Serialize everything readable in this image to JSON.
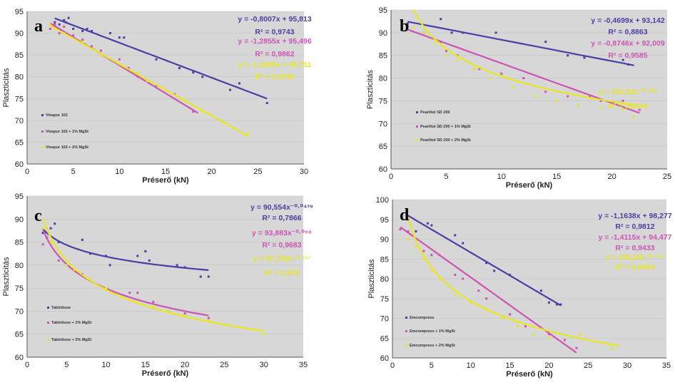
{
  "figure": {
    "colors": {
      "series1": "#4a3fa3",
      "series2": "#cc55b4",
      "series3": "#e8e820"
    }
  },
  "chart_data": [
    {
      "type": "scatter",
      "panel": "a",
      "xlabel": "Préserő (kN)",
      "ylabel": "Plaszticitás",
      "xlim": [
        0,
        30
      ],
      "ylim": [
        60,
        95
      ],
      "xticks": [
        0,
        5,
        10,
        15,
        20,
        25,
        30
      ],
      "yticks": [
        60,
        65,
        70,
        75,
        80,
        85,
        90,
        95
      ],
      "series": [
        {
          "name": "Vivapur 102",
          "fit": "linear",
          "a": -0.8007,
          "b": 95.813,
          "equation": "y = -0,8007x + 95,813",
          "r2": "R² = 0,9743",
          "fit_range": [
            3,
            26
          ],
          "points": [
            [
              3,
              92.5
            ],
            [
              3.5,
              92
            ],
            [
              4,
              93
            ],
            [
              4.2,
              92.5
            ],
            [
              4.5,
              93.5
            ],
            [
              5,
              91
            ],
            [
              6,
              90.5
            ],
            [
              6.5,
              91
            ],
            [
              7,
              90.5
            ],
            [
              9,
              90
            ],
            [
              10,
              89
            ],
            [
              10.5,
              89
            ],
            [
              14,
              84
            ],
            [
              16.5,
              82
            ],
            [
              18,
              81
            ],
            [
              19,
              80
            ],
            [
              22,
              77
            ],
            [
              23,
              78.5
            ],
            [
              26,
              74
            ]
          ]
        },
        {
          "name": "Vivapur 102 + 1% MgSt",
          "fit": "linear",
          "a": -1.2855,
          "b": 95.496,
          "equation": "y = -1,2855x + 95,496",
          "r2": "R² = 0,9862",
          "fit_range": [
            2.5,
            18.5
          ],
          "points": [
            [
              2.5,
              91
            ],
            [
              3,
              92
            ],
            [
              3.5,
              90
            ],
            [
              4,
              91.5
            ],
            [
              5,
              89.5
            ],
            [
              6,
              88.5
            ],
            [
              7,
              87
            ],
            [
              8,
              86
            ],
            [
              9,
              84
            ],
            [
              10,
              84
            ],
            [
              11,
              82
            ],
            [
              12,
              80
            ],
            [
              14,
              78
            ],
            [
              16,
              76
            ],
            [
              18,
              72
            ]
          ]
        },
        {
          "name": "Vivapur 102 + 2% MgSt",
          "fit": "linear",
          "a": -1.1808,
          "b": 94.711,
          "equation": "y = -1,1808x + 94,711",
          "r2": "R² = 0,9789",
          "fit_range": [
            2.5,
            24
          ],
          "points": [
            [
              2.5,
              92
            ],
            [
              3,
              91
            ],
            [
              4,
              90
            ],
            [
              6,
              88
            ],
            [
              7.5,
              86
            ],
            [
              8,
              85
            ],
            [
              10,
              83
            ],
            [
              12,
              81
            ],
            [
              13,
              79
            ],
            [
              15,
              77
            ],
            [
              17,
              75
            ],
            [
              19,
              72
            ],
            [
              21,
              70
            ],
            [
              24,
              67
            ]
          ]
        }
      ]
    },
    {
      "type": "scatter",
      "panel": "b",
      "xlabel": "Préserő (kN)",
      "ylabel": "Plaszticitás",
      "xlim": [
        0,
        25
      ],
      "ylim": [
        60,
        95
      ],
      "xticks": [
        0,
        5,
        10,
        15,
        20,
        25
      ],
      "yticks": [
        60,
        65,
        70,
        75,
        80,
        85,
        90,
        95
      ],
      "series": [
        {
          "name": "Pearlitol SD 200",
          "fit": "linear",
          "a": -0.4699,
          "b": 93.142,
          "equation": "y = -0,4699x + 93,142",
          "r2": "R² = 0,8863",
          "fit_range": [
            1.5,
            22
          ],
          "points": [
            [
              1.5,
              92
            ],
            [
              2,
              91
            ],
            [
              3,
              90
            ],
            [
              4.5,
              93
            ],
            [
              5.5,
              90
            ],
            [
              6.5,
              90
            ],
            [
              9.5,
              90
            ],
            [
              14,
              88
            ],
            [
              16,
              85
            ],
            [
              17.5,
              84.5
            ],
            [
              21,
              84
            ],
            [
              21.5,
              83
            ]
          ]
        },
        {
          "name": "Pearlitol SD 200 + 1% MgSt",
          "fit": "linear",
          "a": -0.8746,
          "b": 92.009,
          "equation": "y = -0,8746x + 92,009",
          "r2": "R² = 0,9585",
          "fit_range": [
            1.5,
            22.5
          ],
          "points": [
            [
              1.5,
              91.5
            ],
            [
              3,
              90
            ],
            [
              4.5,
              88
            ],
            [
              5,
              86
            ],
            [
              6,
              85
            ],
            [
              8,
              82
            ],
            [
              10,
              81
            ],
            [
              12,
              80
            ],
            [
              14,
              77
            ],
            [
              16,
              76
            ],
            [
              18,
              76
            ],
            [
              19,
              75
            ],
            [
              21,
              75
            ],
            [
              22.5,
              73
            ]
          ]
        },
        {
          "name": "Pearlitol SD 200 + 2% MgSt",
          "fit": "power",
          "a": 102.22,
          "b": -0.104,
          "equation": "y = 102,22x⁻⁰·¹⁰⁴",
          "r2": "R² = 0,9844",
          "fit_range": [
            2,
            22
          ],
          "points": [
            [
              2,
              91
            ],
            [
              3,
              90
            ],
            [
              4,
              88
            ],
            [
              5,
              85
            ],
            [
              6,
              84
            ],
            [
              7.5,
              82
            ],
            [
              9,
              80
            ],
            [
              11,
              78
            ],
            [
              13,
              76
            ],
            [
              15,
              75
            ],
            [
              17,
              74
            ],
            [
              19,
              73.5
            ],
            [
              21,
              73
            ],
            [
              22,
              71.5
            ]
          ]
        }
      ]
    },
    {
      "type": "scatter",
      "panel": "c",
      "xlabel": "Préserő (kN)",
      "ylabel": "Plaszticitás",
      "xlim": [
        0,
        35
      ],
      "ylim": [
        60,
        95
      ],
      "xticks": [
        0,
        5,
        10,
        15,
        20,
        25,
        30,
        35
      ],
      "yticks": [
        60,
        65,
        70,
        75,
        80,
        85,
        90,
        95
      ],
      "series": [
        {
          "name": "Tablettose",
          "fit": "power",
          "a": 90.554,
          "b": -0.0439,
          "equation": "y = 90,554x⁻⁰·⁰⁴³⁹",
          "r2": "R² = 0,7866",
          "fit_range": [
            2,
            23
          ],
          "points": [
            [
              2,
              87
            ],
            [
              2.5,
              86
            ],
            [
              3,
              88
            ],
            [
              3.5,
              89
            ],
            [
              4,
              85
            ],
            [
              7,
              85.5
            ],
            [
              8,
              82.5
            ],
            [
              10,
              82
            ],
            [
              10.5,
              80
            ],
            [
              14,
              82
            ],
            [
              15,
              83
            ],
            [
              15.5,
              81
            ],
            [
              19,
              80
            ],
            [
              20,
              79.5
            ],
            [
              22,
              77.5
            ],
            [
              23,
              77.5
            ]
          ]
        },
        {
          "name": "Tablettose + 1% MgSt",
          "fit": "power",
          "a": 93.883,
          "b": -0.098,
          "equation": "y = 93,883x⁻⁰·⁰⁹⁸",
          "r2": "R² = 0,9683",
          "fit_range": [
            2,
            23
          ],
          "points": [
            [
              2,
              84.5
            ],
            [
              2.5,
              86
            ],
            [
              3,
              85
            ],
            [
              4,
              81
            ],
            [
              5,
              80
            ],
            [
              7,
              78
            ],
            [
              8,
              77
            ],
            [
              10,
              75
            ],
            [
              12,
              73
            ],
            [
              13,
              74
            ],
            [
              14,
              74
            ],
            [
              16,
              72
            ],
            [
              18,
              70
            ],
            [
              20,
              69.5
            ],
            [
              23,
              68.5
            ]
          ]
        },
        {
          "name": "Tablettose + 2% MgSt",
          "fit": "power",
          "a": 97.759,
          "b": -0.117,
          "equation": "y = 97,759x⁻⁰·¹¹⁷",
          "r2": "R² = 0,978",
          "fit_range": [
            2,
            30
          ],
          "points": [
            [
              2,
              88
            ],
            [
              3,
              85
            ],
            [
              4,
              83
            ],
            [
              5,
              80
            ],
            [
              6,
              79
            ],
            [
              8,
              77
            ],
            [
              10,
              75
            ],
            [
              12,
              73
            ],
            [
              14,
              72
            ],
            [
              16,
              71
            ],
            [
              18,
              70
            ],
            [
              20,
              69
            ],
            [
              23,
              68
            ],
            [
              25,
              67
            ],
            [
              30,
              65
            ]
          ]
        }
      ]
    },
    {
      "type": "scatter",
      "panel": "d",
      "xlabel": "Préserő (kN)",
      "ylabel": "Plaszticitás",
      "xlim": [
        0,
        35
      ],
      "ylim": [
        60,
        100
      ],
      "xticks": [
        0,
        5,
        10,
        15,
        20,
        25,
        30,
        35
      ],
      "yticks": [
        60,
        65,
        70,
        75,
        80,
        85,
        90,
        95,
        100
      ],
      "series": [
        {
          "name": "Emcompress",
          "fit": "linear",
          "a": -1.1638,
          "b": 98.277,
          "equation": "y = -1,1638x + 98,277",
          "r2": "R² = 0,9812",
          "fit_range": [
            2,
            21.5
          ],
          "points": [
            [
              2,
              95
            ],
            [
              3,
              92
            ],
            [
              4.5,
              94
            ],
            [
              5,
              93.5
            ],
            [
              8,
              91
            ],
            [
              9,
              89
            ],
            [
              12,
              84
            ],
            [
              13,
              82
            ],
            [
              15,
              81
            ],
            [
              19,
              77
            ],
            [
              20,
              74
            ],
            [
              21,
              73.5
            ],
            [
              21.5,
              73.5
            ]
          ]
        },
        {
          "name": "Emcompress + 1% MgSt",
          "fit": "linear",
          "a": -1.4115,
          "b": 94.477,
          "equation": "y = -1,4115x + 94,477",
          "r2": "R² = 0,9433",
          "fit_range": [
            1,
            23.5
          ],
          "points": [
            [
              1,
              92.5
            ],
            [
              2,
              92
            ],
            [
              3,
              90
            ],
            [
              4,
              87
            ],
            [
              5,
              86
            ],
            [
              6,
              86
            ],
            [
              8,
              81
            ],
            [
              9,
              80
            ],
            [
              11,
              77
            ],
            [
              12,
              75
            ],
            [
              15,
              71
            ],
            [
              17,
              68
            ],
            [
              20,
              66
            ],
            [
              22,
              64.5
            ],
            [
              23.5,
              62.5
            ]
          ]
        },
        {
          "name": "Emcompress + 2% MgSt",
          "fit": "power",
          "a": 106.28,
          "b": -0.155,
          "equation": "y = 106,28x⁻⁰·¹⁵⁵",
          "r2": "R² = 0,8484",
          "fit_range": [
            2,
            29
          ],
          "points": [
            [
              2,
              90
            ],
            [
              3,
              88
            ],
            [
              4,
              85
            ],
            [
              5,
              82
            ],
            [
              6,
              80
            ],
            [
              8,
              76
            ],
            [
              10,
              74
            ],
            [
              12,
              72
            ],
            [
              14,
              70
            ],
            [
              16,
              68
            ],
            [
              18,
              66
            ],
            [
              20,
              65
            ],
            [
              24,
              66
            ],
            [
              28,
              62.5
            ]
          ]
        }
      ]
    }
  ]
}
